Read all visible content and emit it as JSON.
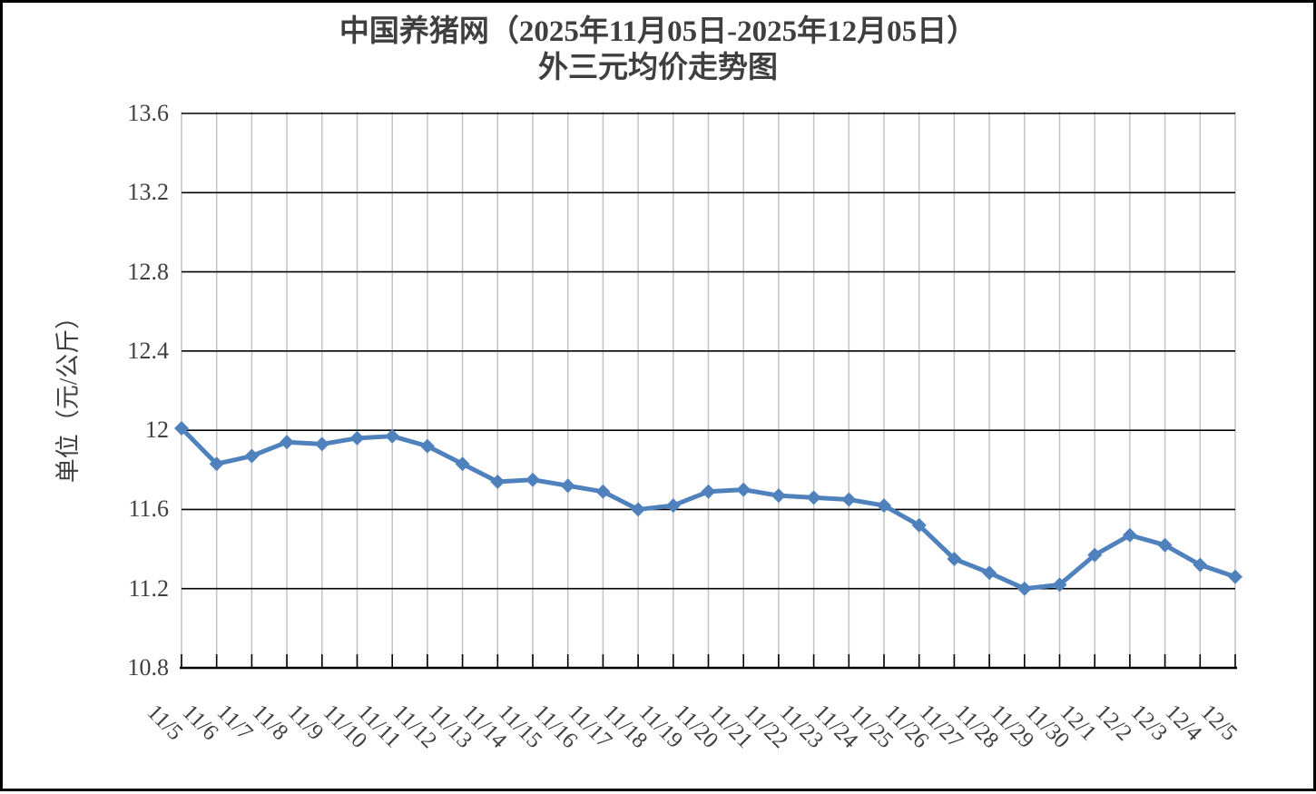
{
  "title": {
    "line1": "中国养猪网（2025年11月05日-2025年12月05日）",
    "line2": "外三元均价走势图"
  },
  "y_axis_title": "单位（元/公斤）",
  "colors": {
    "series": "#4f81bd",
    "vertical_grid": "#c3c3c3",
    "horizontal_grid": "#000000",
    "axis": "#000000",
    "text": "#3f3f3f",
    "frame_border": "#000000"
  },
  "chart_data": {
    "type": "line",
    "title": "中国养猪网（2025年11月05日-2025年12月05日）外三元均价走势图",
    "xlabel": "",
    "ylabel": "单位（元/公斤）",
    "ylim": [
      10.8,
      13.6
    ],
    "y_tick_step": 0.4,
    "y_tick_labels": [
      "13.6",
      "13.2",
      "12.8",
      "12.4",
      "12",
      "11.6",
      "11.2",
      "10.8"
    ],
    "legend_position": "none",
    "grid": "horizontal-major-black, vertical-category-gray",
    "marker": "diamond",
    "categories": [
      "11/5",
      "11/6",
      "11/7",
      "11/8",
      "11/9",
      "11/10",
      "11/11",
      "11/12",
      "11/13",
      "11/14",
      "11/15",
      "11/16",
      "11/17",
      "11/18",
      "11/19",
      "11/20",
      "11/21",
      "11/22",
      "11/23",
      "11/24",
      "11/25",
      "11/26",
      "11/27",
      "11/28",
      "11/29",
      "11/30",
      "12/1",
      "12/2",
      "12/3",
      "12/4",
      "12/5"
    ],
    "series": [
      {
        "name": "外三元均价",
        "values": [
          12.01,
          11.83,
          11.87,
          11.94,
          11.93,
          11.96,
          11.97,
          11.92,
          11.83,
          11.74,
          11.75,
          11.72,
          11.69,
          11.6,
          11.62,
          11.69,
          11.7,
          11.67,
          11.66,
          11.65,
          11.62,
          11.52,
          11.35,
          11.28,
          11.2,
          11.22,
          11.37,
          11.47,
          11.42,
          11.32,
          11.26
        ]
      }
    ]
  }
}
